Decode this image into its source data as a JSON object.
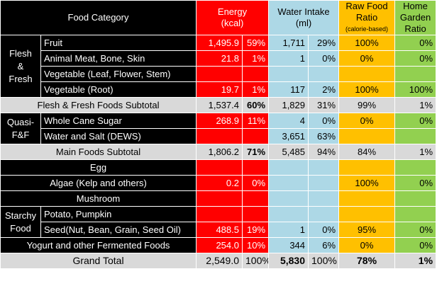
{
  "headers": {
    "food_category": "Food Category",
    "energy": "Energy",
    "energy_unit": "(kcal)",
    "water": "Water Intake",
    "water_unit": "(ml)",
    "raw": "Raw Food",
    "raw2": "Ratio",
    "raw_note": "(calorie-based)",
    "garden": "Home",
    "garden2": "Garden",
    "garden3": "Ratio"
  },
  "groups": {
    "flesh": [
      "Flesh",
      "&",
      "Fresh"
    ],
    "quasi": [
      "Quasi-",
      "F&F"
    ],
    "starchy": [
      "Starchy",
      "Food"
    ]
  },
  "rows": {
    "fruit": {
      "name": "Fruit",
      "energy": "1,495.9",
      "energy_pct": "59%",
      "water": "1,711",
      "water_pct": "29%",
      "raw": "100%",
      "garden": "0%"
    },
    "meat": {
      "name": "Animal Meat, Bone, Skin",
      "energy": "21.8",
      "energy_pct": "1%",
      "water": "1",
      "water_pct": "0%",
      "raw": "0%",
      "garden": "0%"
    },
    "veg_leaf": {
      "name": "Vegetable (Leaf, Flower, Stem)"
    },
    "veg_root": {
      "name": "Vegetable (Root)",
      "energy": "19.7",
      "energy_pct": "1%",
      "water": "117",
      "water_pct": "2%",
      "raw": "100%",
      "garden": "100%"
    },
    "flesh_sub": {
      "name": "Flesh & Fresh Foods Subtotal",
      "energy": "1,537.4",
      "energy_pct": "60%",
      "water": "1,829",
      "water_pct": "31%",
      "raw": "99%",
      "garden": "1%"
    },
    "sugar": {
      "name": "Whole Cane Sugar",
      "energy": "268.9",
      "energy_pct": "11%",
      "water": "4",
      "water_pct": "0%",
      "raw": "0%",
      "garden": "0%"
    },
    "water_salt": {
      "name": "Water and Salt (DEWS)",
      "water": "3,651",
      "water_pct": "63%"
    },
    "main_sub": {
      "name": "Main Foods Subtotal",
      "energy": "1,806.2",
      "energy_pct": "71%",
      "water": "5,485",
      "water_pct": "94%",
      "raw": "84%",
      "garden": "1%"
    },
    "egg": {
      "name": "Egg"
    },
    "algae": {
      "name": "Algae (Kelp and others)",
      "energy": "0.2",
      "energy_pct": "0%",
      "raw": "100%",
      "garden": "0%"
    },
    "mushroom": {
      "name": "Mushroom"
    },
    "potato": {
      "name": "Potato, Pumpkin"
    },
    "seed": {
      "name": "Seed(Nut, Bean, Grain, Seed Oil)",
      "energy": "488.5",
      "energy_pct": "19%",
      "water": "1",
      "water_pct": "0%",
      "raw": "95%",
      "garden": "0%"
    },
    "yogurt": {
      "name": "Yogurt and other Fermented Foods",
      "energy": "254.0",
      "energy_pct": "10%",
      "water": "344",
      "water_pct": "6%",
      "raw": "0%",
      "garden": "0%"
    },
    "grand": {
      "name": "Grand Total",
      "energy": "2,549.0",
      "energy_pct": "100%",
      "water": "5,830",
      "water_pct": "100%",
      "raw": "78%",
      "garden": "1%"
    }
  }
}
